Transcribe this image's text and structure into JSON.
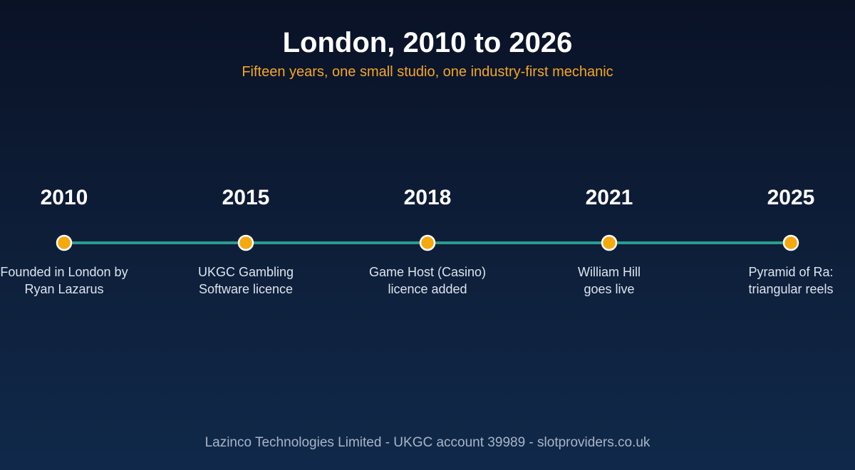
{
  "header": {
    "title": "London, 2010 to 2026",
    "subtitle": "Fifteen years, one small studio, one industry-first mechanic"
  },
  "milestones": [
    {
      "year": "2010",
      "description": "Founded in London by\nRyan Lazarus"
    },
    {
      "year": "2015",
      "description": "UKGC Gambling\nSoftware licence"
    },
    {
      "year": "2018",
      "description": "Game Host (Casino)\nlicence added"
    },
    {
      "year": "2021",
      "description": "William Hill\ngoes live"
    },
    {
      "year": "2025",
      "description": "Pyramid of Ra:\ntriangular reels"
    }
  ],
  "footer": {
    "text": "Lazinco Technologies Limited - UKGC account 39989 - slotproviders.co.uk"
  },
  "colors": {
    "line": "#2a9d8f",
    "marker_fill": "#f5a90f",
    "marker_stroke": "#ffffff",
    "subtitle": "#f5a623"
  }
}
